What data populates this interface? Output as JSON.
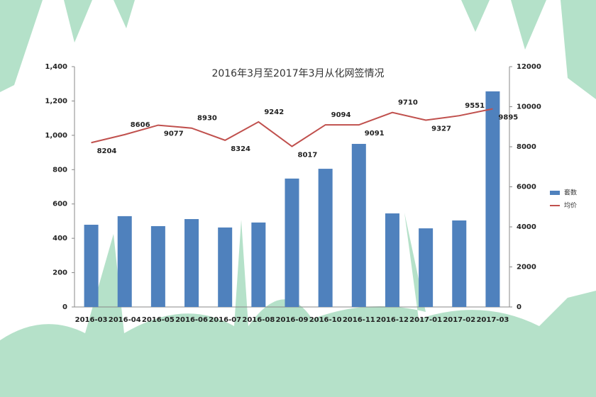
{
  "chart_data": {
    "type": "bar_line",
    "title": "2016年3月至2017年3月从化网签情况",
    "categories": [
      "2016-03",
      "2016-04",
      "2016-05",
      "2016-06",
      "2016-07",
      "2016-08",
      "2016-09",
      "2016-10",
      "2016-11",
      "2016-12",
      "2017-01",
      "2017-02",
      "2017-03"
    ],
    "series": [
      {
        "name": "套数",
        "type": "bar",
        "color": "#4f81bd",
        "values": [
          479,
          529,
          471,
          512,
          463,
          492,
          748,
          805,
          950,
          545,
          458,
          504,
          1256
        ]
      },
      {
        "name": "均价",
        "type": "line",
        "axis": "y2",
        "color": "#c0504d",
        "values": [
          8204,
          8606,
          9077,
          8930,
          8324,
          9242,
          8017,
          9094,
          9091,
          9710,
          9327,
          9551,
          9895
        ]
      }
    ],
    "ylim": [
      0,
      1400
    ],
    "yticks": [
      0,
      200,
      400,
      600,
      800,
      {
        "value": 1000,
        "label": "1,000"
      },
      {
        "value": 1200,
        "label": "1,200"
      },
      {
        "value": 1400,
        "label": "1,400"
      }
    ],
    "y2lim": [
      0,
      12000
    ],
    "y2ticks": [
      0,
      2000,
      4000,
      6000,
      8000,
      10000,
      12000
    ],
    "grid": false,
    "legend": "right"
  }
}
